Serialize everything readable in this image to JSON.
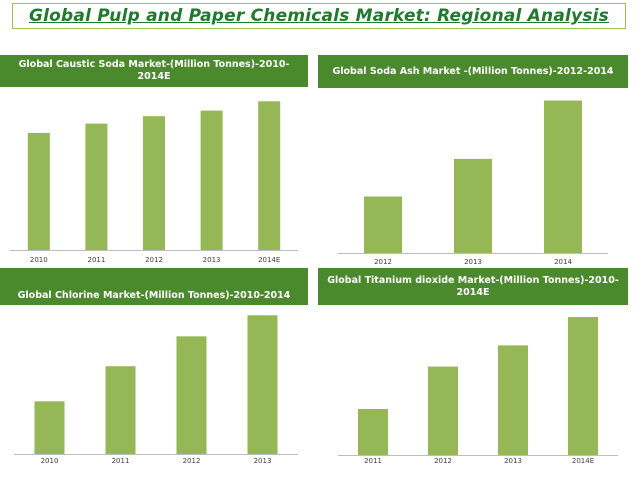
{
  "page": {
    "title": "Global Pulp and Paper Chemicals Market: Regional Analysis"
  },
  "colors": {
    "title": "#1f7a30",
    "header_bg": "#4a8a2d",
    "bar": "#96b755",
    "frame": "#9bc44e"
  },
  "chart_data": [
    {
      "id": "caustic",
      "type": "bar",
      "title": "Global Caustic Soda Market-(Million Tonnes)-2010-2014E",
      "categories": [
        "2010",
        "2011",
        "2012",
        "2013",
        "2014E"
      ],
      "values": [
        63,
        68,
        72,
        75,
        80
      ],
      "ylim": [
        0,
        85
      ],
      "grid": false,
      "legend": "none"
    },
    {
      "id": "sodaash",
      "type": "bar",
      "title": "Global Soda Ash Market -(Million Tonnes)-2012-2014",
      "categories": [
        "2012",
        "2013",
        "2014"
      ],
      "values": [
        30,
        50,
        81
      ],
      "ylim": [
        0,
        85
      ],
      "grid": false,
      "legend": "none"
    },
    {
      "id": "chlorine",
      "type": "bar",
      "title": "Global Chlorine Market-(Million Tonnes)-2010-2014",
      "categories": [
        "2010",
        "2011",
        "2012",
        "2013"
      ],
      "values": [
        30,
        50,
        67,
        79
      ],
      "ylim": [
        0,
        82
      ],
      "grid": false,
      "legend": "none"
    },
    {
      "id": "tio2",
      "type": "bar",
      "title": "Global  Titanium dioxide Market-(Million Tonnes)-2010-2014E",
      "categories": [
        "2011",
        "2012",
        "2013",
        "2014E"
      ],
      "values": [
        26,
        50,
        62,
        78
      ],
      "ylim": [
        0,
        82
      ],
      "grid": false,
      "legend": "none"
    }
  ]
}
